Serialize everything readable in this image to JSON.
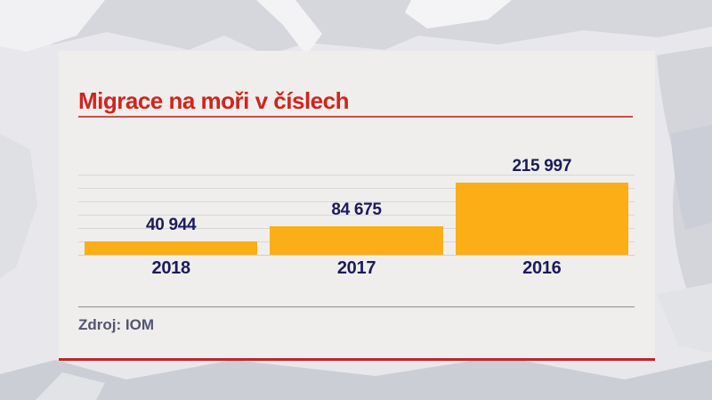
{
  "title": "Migrace na moři v číslech",
  "source_label": "Zdroj: IOM",
  "chart_data": {
    "type": "bar",
    "title": "Migrace na moři v číslech",
    "categories": [
      "2018",
      "2017",
      "2016"
    ],
    "values": [
      40944,
      84675,
      215997
    ],
    "value_labels": [
      "40 944",
      "84 675",
      "215 997"
    ],
    "xlabel": "",
    "ylabel": "",
    "ylim": [
      0,
      240000
    ],
    "gridline_step": 40000,
    "grid": true,
    "legend_position": "none",
    "bar_color": "#fbae16",
    "value_label_color": "#1b1b5b",
    "source": "Zdroj: IOM"
  },
  "colors": {
    "title_red": "#d0241e",
    "title_underline": "#c9504b",
    "card_background": "#efeeec",
    "card_bottom_border": "#c2242c",
    "bar_orange": "#fbae16",
    "label_navy": "#1b1b5b",
    "gridline_gray": "#d7d7da",
    "source_gray": "#545472",
    "map_sea": "#e8e8ec",
    "map_land": "#d5d7dd"
  }
}
